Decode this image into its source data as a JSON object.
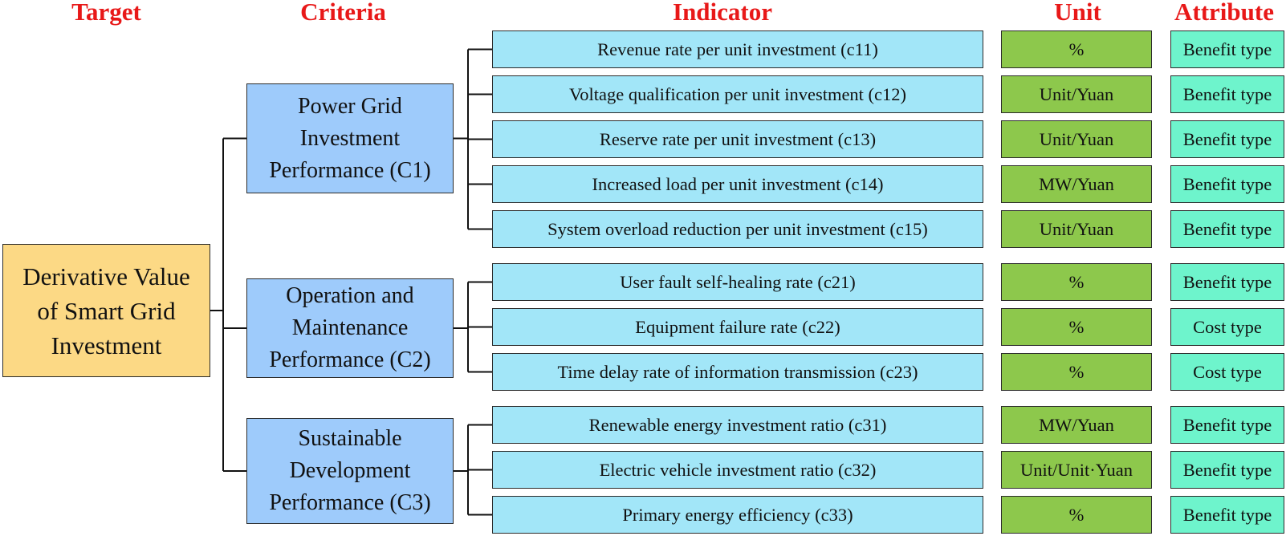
{
  "headers": {
    "target": "Target",
    "criteria": "Criteria",
    "indicator": "Indicator",
    "unit": "Unit",
    "attribute": "Attribute"
  },
  "target": "Derivative Value\nof Smart Grid\nInvestment",
  "criteria": [
    {
      "label": "Power Grid\nInvestment\nPerformance (C1)",
      "indicators": [
        {
          "name": "Revenue rate per unit investment (c11)",
          "unit": "%",
          "attribute": "Benefit type"
        },
        {
          "name": "Voltage qualification per unit investment (c12)",
          "unit": "Unit/Yuan",
          "attribute": "Benefit type"
        },
        {
          "name": "Reserve rate per unit investment (c13)",
          "unit": "Unit/Yuan",
          "attribute": "Benefit type"
        },
        {
          "name": "Increased load per unit investment (c14)",
          "unit": "MW/Yuan",
          "attribute": "Benefit type"
        },
        {
          "name": "System overload reduction per unit investment (c15)",
          "unit": "Unit/Yuan",
          "attribute": "Benefit type"
        }
      ]
    },
    {
      "label": "Operation and\nMaintenance\nPerformance (C2)",
      "indicators": [
        {
          "name": "User fault self-healing rate (c21)",
          "unit": "%",
          "attribute": "Benefit type"
        },
        {
          "name": "Equipment failure rate (c22)",
          "unit": "%",
          "attribute": "Cost type"
        },
        {
          "name": "Time delay rate of information transmission (c23)",
          "unit": "%",
          "attribute": "Cost type"
        }
      ]
    },
    {
      "label": "Sustainable\nDevelopment\nPerformance (C3)",
      "indicators": [
        {
          "name": "Renewable energy investment ratio (c31)",
          "unit": "MW/Yuan",
          "attribute": "Benefit type"
        },
        {
          "name": "Electric vehicle investment ratio (c32)",
          "unit": "Unit/Unit·Yuan",
          "attribute": "Benefit type"
        },
        {
          "name": "Primary energy efficiency (c33)",
          "unit": "%",
          "attribute": "Benefit type"
        }
      ]
    }
  ]
}
